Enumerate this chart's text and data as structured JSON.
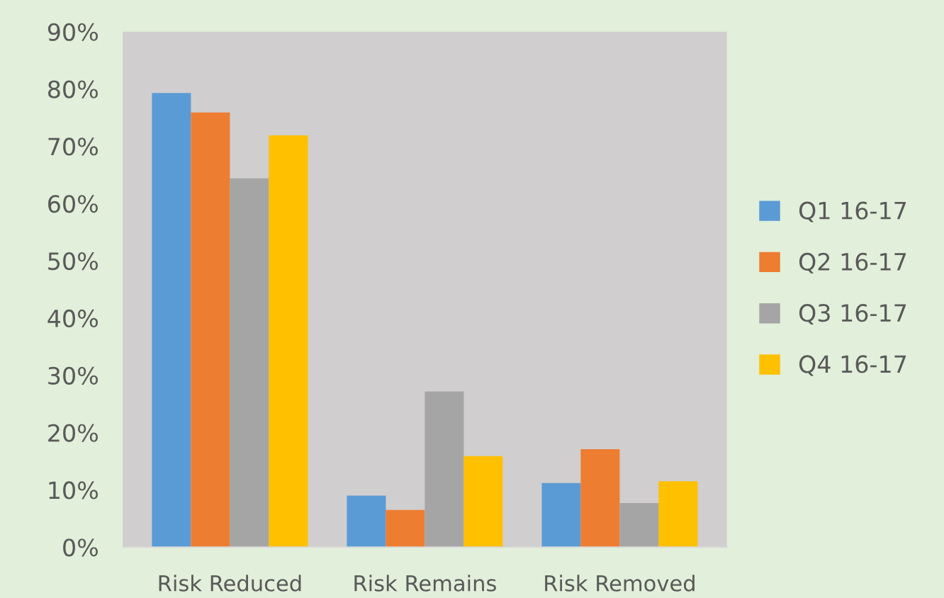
{
  "chart_data": {
    "type": "bar",
    "categories": [
      "Risk Reduced",
      "Risk Remains",
      "Risk Removed"
    ],
    "series": [
      {
        "name": "Q1 16-17",
        "color": "#5b9bd5",
        "values": [
          79.3,
          9.0,
          11.2
        ]
      },
      {
        "name": "Q2 16-17",
        "color": "#ed7d31",
        "values": [
          75.9,
          6.5,
          17.1
        ]
      },
      {
        "name": "Q3 16-17",
        "color": "#a5a5a5",
        "values": [
          64.4,
          27.2,
          7.7
        ]
      },
      {
        "name": "Q4 16-17",
        "color": "#ffc000",
        "values": [
          71.9,
          15.9,
          11.5
        ]
      }
    ],
    "ylim": [
      0,
      90
    ],
    "yticks": [
      {
        "value": 0,
        "label": "0%"
      },
      {
        "value": 10,
        "label": "10%"
      },
      {
        "value": 20,
        "label": "20%"
      },
      {
        "value": 30,
        "label": "30%"
      },
      {
        "value": 40,
        "label": "40%"
      },
      {
        "value": 50,
        "label": "50%"
      },
      {
        "value": 60,
        "label": "60%"
      },
      {
        "value": 70,
        "label": "70%"
      },
      {
        "value": 80,
        "label": "80%"
      },
      {
        "value": 90,
        "label": "90%"
      }
    ],
    "grid": false,
    "legend": "right"
  }
}
